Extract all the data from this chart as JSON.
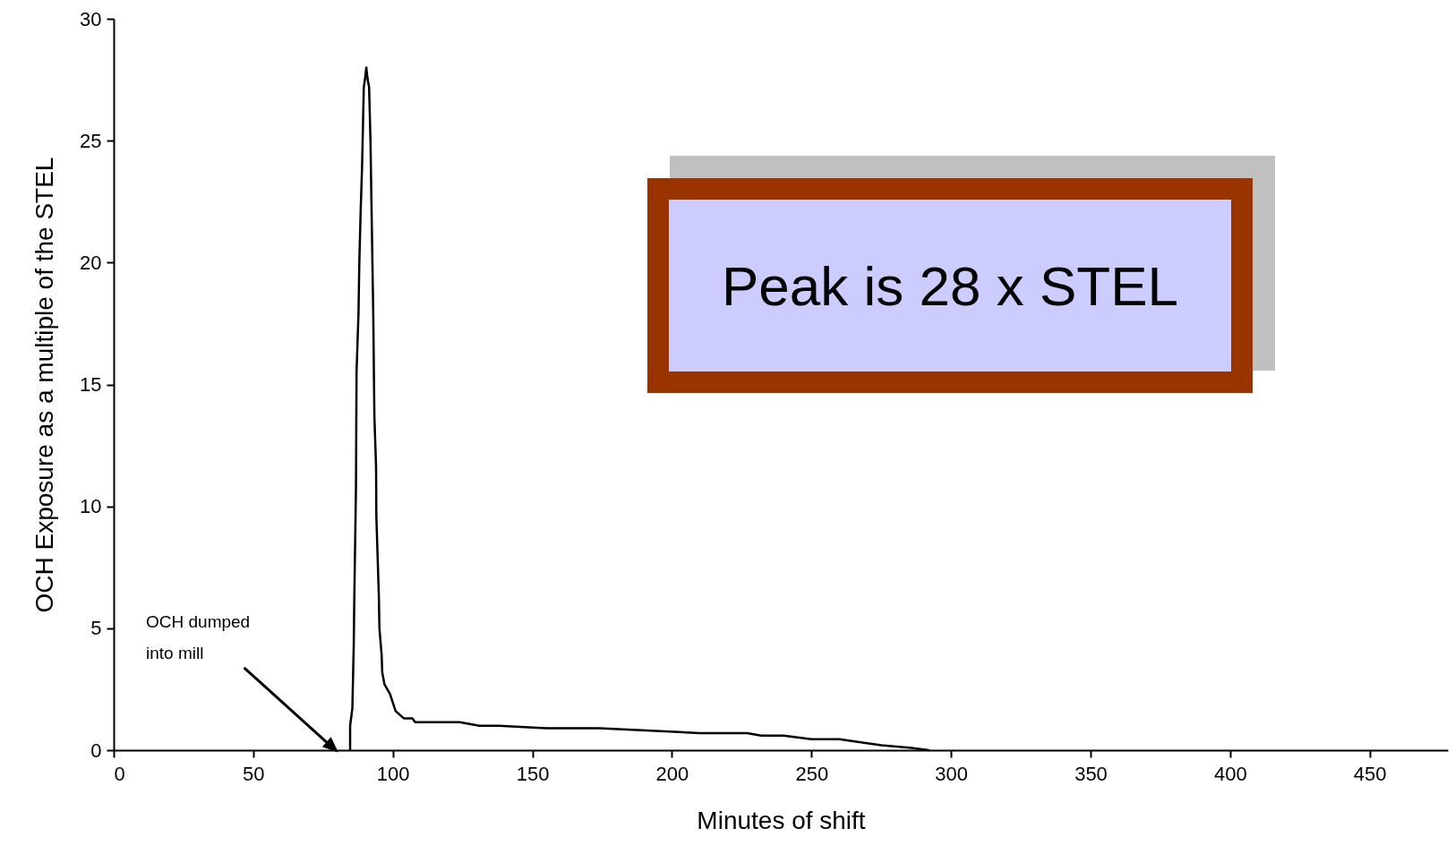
{
  "chart_data": {
    "type": "line",
    "xlabel": "Minutes of shift",
    "ylabel": "OCH Exposure as a multiple of the STEL",
    "x": [
      84.7,
      84.7,
      85.5,
      86,
      86.2,
      86.8,
      87,
      87.7,
      88,
      88.5,
      89,
      89.6,
      90,
      90.5,
      91,
      91.5,
      92,
      92.2,
      93,
      93.4,
      94,
      94.1,
      95,
      95.2,
      96,
      96.2,
      97,
      99,
      101,
      104,
      107,
      108,
      110,
      113,
      124,
      131,
      138,
      155,
      174,
      210,
      227,
      232,
      240,
      250,
      260,
      266,
      275,
      285,
      292
    ],
    "series": [
      {
        "color": "#000000",
        "values": [
          0,
          1,
          1.7,
          4.3,
          6.2,
          10.8,
          15.5,
          17.9,
          20,
          22.2,
          24,
          27.2,
          27.5,
          28,
          27.5,
          27.2,
          25,
          23.5,
          17.8,
          13.7,
          11.6,
          9.6,
          6.3,
          5,
          3.9,
          3.2,
          2.7,
          2.3,
          1.6,
          1.3,
          1.3,
          1.15,
          1.15,
          1.15,
          1.15,
          1,
          1,
          0.9,
          0.9,
          0.7,
          0.7,
          0.6,
          0.6,
          0.45,
          0.45,
          0.35,
          0.2,
          0.1,
          0
        ]
      }
    ],
    "xlim": [
      0,
      478
    ],
    "xticks": [
      0,
      50,
      100,
      150,
      200,
      250,
      300,
      350,
      400,
      450
    ],
    "ylim": [
      0,
      30
    ],
    "yticks": [
      0,
      5,
      10,
      15,
      20,
      25,
      30
    ],
    "grid": false,
    "marker": "none",
    "line_style": "solid",
    "annotations": [
      "OCH dumped into mill",
      "Peak is 28 x STEL"
    ]
  }
}
